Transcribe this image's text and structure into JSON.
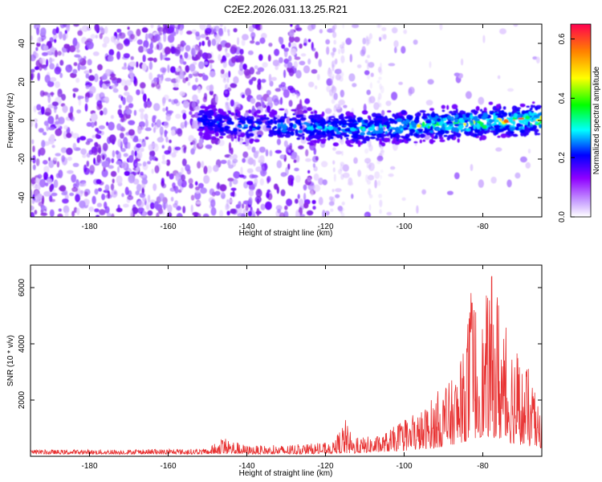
{
  "figure": {
    "title": "C2E2.2026.031.13.25.R21"
  },
  "chart_data": [
    {
      "type": "heatmap",
      "title": "C2E2.2026.031.13.25.R21",
      "xlabel": "Height of straight line (km)",
      "ylabel": "Frequency (Hz)",
      "xlim": [
        -195,
        -65
      ],
      "ylim": [
        -50,
        50
      ],
      "x_ticks": [
        -180,
        -160,
        -140,
        -120,
        -100,
        -80
      ],
      "y_ticks": [
        -40,
        -20,
        0,
        20,
        40
      ],
      "colorbar": {
        "label": "Normalized spectral amplitude",
        "range": [
          0.0,
          0.65
        ],
        "ticks": [
          0.0,
          0.2,
          0.4,
          0.6
        ],
        "colors": [
          "#ffffff",
          "#8f00ff",
          "#0000ff",
          "#00ffff",
          "#00ff00",
          "#ffff00",
          "#ff8000",
          "#ff0040"
        ]
      },
      "signal_track": {
        "description_free_points": [
          {
            "height_km": -150,
            "frequency_hz": 0
          },
          {
            "height_km": -145,
            "frequency_hz": -2
          },
          {
            "height_km": -140,
            "frequency_hz": -3
          },
          {
            "height_km": -130,
            "frequency_hz": -3
          },
          {
            "height_km": -120,
            "frequency_hz": -4
          },
          {
            "height_km": -110,
            "frequency_hz": -4
          },
          {
            "height_km": -100,
            "frequency_hz": -3
          },
          {
            "height_km": -90,
            "frequency_hz": -2
          },
          {
            "height_km": -80,
            "frequency_hz": -1
          },
          {
            "height_km": -70,
            "frequency_hz": 0
          },
          {
            "height_km": -66,
            "frequency_hz": 0
          }
        ],
        "peak_amplitude": 0.65
      }
    },
    {
      "type": "line",
      "xlabel": "Height of straight line (km)",
      "ylabel": "SNR (10 * v/v)",
      "xlim": [
        -195,
        -65
      ],
      "ylim": [
        0,
        6800
      ],
      "x_ticks": [
        -180,
        -160,
        -140,
        -120,
        -100,
        -80
      ],
      "y_ticks": [
        2000,
        4000,
        6000
      ],
      "series": [
        {
          "name": "SNR",
          "color": "#e83232",
          "envelope": {
            "x": [
              -195,
              -170,
              -150,
              -146,
              -140,
              -130,
              -125,
              -118,
              -115,
              -113,
              -110,
              -106,
              -100,
              -95,
              -92,
              -88,
              -85,
              -83,
              -80,
              -78,
              -76,
              -74,
              -72,
              -70,
              -68,
              -66
            ],
            "peak": [
              230,
              250,
              270,
              700,
              380,
              400,
              450,
              500,
              1350,
              650,
              700,
              750,
              1300,
              1700,
              2300,
              2700,
              3700,
              6200,
              5000,
              6600,
              6100,
              4500,
              4400,
              3300,
              3100,
              1800
            ],
            "floor": [
              80,
              80,
              80,
              80,
              80,
              80,
              80,
              100,
              100,
              100,
              120,
              150,
              200,
              250,
              300,
              400,
              500,
              600,
              700,
              700,
              600,
              500,
              450,
              400,
              350,
              300
            ]
          }
        }
      ]
    }
  ]
}
